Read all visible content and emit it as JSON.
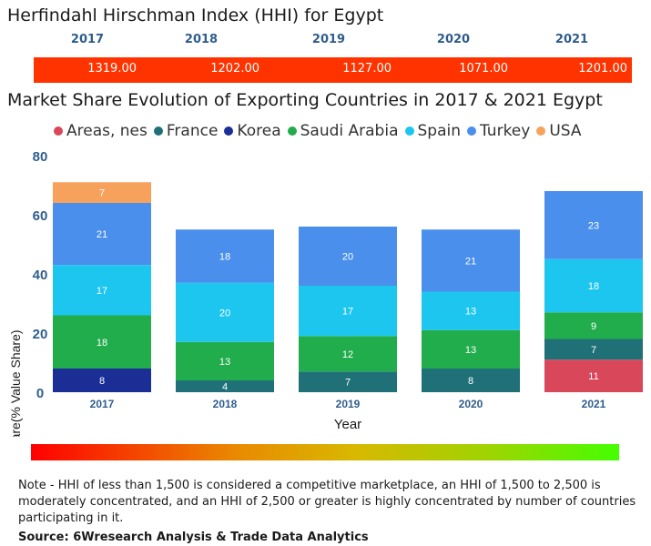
{
  "hhi": {
    "title": "Herfindahl Hirschman Index (HHI) for Egypt",
    "years": [
      "2017",
      "2018",
      "2019",
      "2020",
      "2021"
    ],
    "values": [
      "1319.00",
      "1202.00",
      "1127.00",
      "1071.00",
      "1201.00"
    ],
    "bar_color": "#ff3300"
  },
  "chart_data": {
    "type": "stacked-bar",
    "title": "Market Share Evolution of Exporting Countries in 2017 & 2021 Egypt",
    "xlabel": "Year",
    "ylabel": "Share(% Value Share)",
    "ylim": [
      0,
      80
    ],
    "yticks": [
      "0",
      "20",
      "40",
      "60",
      "80"
    ],
    "categories": [
      "2017",
      "2018",
      "2019",
      "2020",
      "2021"
    ],
    "series": [
      {
        "name": "Areas, nes",
        "color": "#d9475a",
        "values": [
          0,
          0,
          0,
          0,
          11
        ]
      },
      {
        "name": "France",
        "color": "#1f7177",
        "values": [
          0,
          4,
          7,
          8,
          7
        ]
      },
      {
        "name": "Korea",
        "color": "#1a2e96",
        "values": [
          8,
          0,
          0,
          0,
          0
        ]
      },
      {
        "name": "Saudi Arabia",
        "color": "#22ad4c",
        "values": [
          18,
          13,
          12,
          13,
          9
        ]
      },
      {
        "name": "Spain",
        "color": "#1dc6ef",
        "values": [
          17,
          20,
          17,
          13,
          18
        ]
      },
      {
        "name": "Turkey",
        "color": "#4a8fec",
        "values": [
          21,
          18,
          20,
          21,
          23
        ]
      },
      {
        "name": "USA",
        "color": "#f7a25c",
        "values": [
          7,
          0,
          0,
          0,
          0
        ]
      }
    ],
    "labels": [
      [
        "",
        "",
        "",
        "",
        "11"
      ],
      [
        "",
        "4",
        "7",
        "8",
        "7"
      ],
      [
        "8",
        "",
        "",
        "",
        ""
      ],
      [
        "18",
        "13",
        "12",
        "13",
        "9"
      ],
      [
        "17",
        "20",
        "17",
        "13",
        "18"
      ],
      [
        "21",
        "18",
        "20",
        "21",
        "23"
      ],
      [
        "7",
        "",
        "",
        "",
        ""
      ]
    ]
  },
  "note": "Note - HHI of less than 1,500 is considered a competitive marketplace, an HHI of 1,500 to 2,500 is moderately concentrated, and an HHI of 2,500 or greater is highly concentrated by number of countries participating in it.",
  "source": "Source: 6Wresearch Analysis & Trade Data Analytics"
}
